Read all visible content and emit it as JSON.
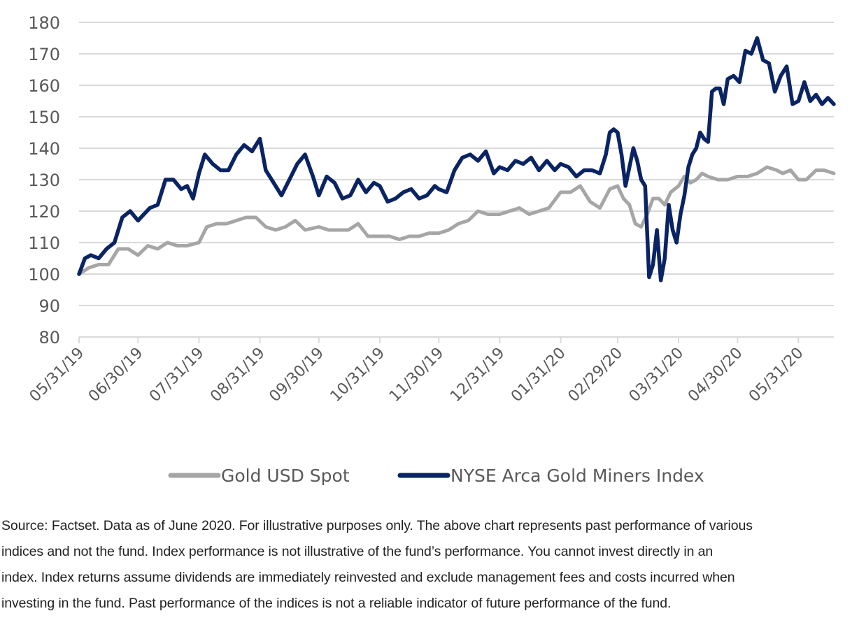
{
  "chart_data": {
    "type": "line",
    "title": "",
    "xlabel": "",
    "ylabel": "",
    "ylim": [
      80,
      180
    ],
    "yticks": [
      180,
      170,
      160,
      150,
      140,
      130,
      120,
      110,
      100,
      90,
      80
    ],
    "grid": true,
    "legend_position": "bottom",
    "x_tick_labels": [
      "05/31/19",
      "06/30/19",
      "07/31/19",
      "08/31/19",
      "09/30/19",
      "10/31/19",
      "11/30/19",
      "12/31/19",
      "01/31/20",
      "02/29/20",
      "03/31/20",
      "04/30/20",
      "05/31/20"
    ],
    "x_tick_positions": [
      0,
      30,
      61,
      92,
      122,
      153,
      183,
      214,
      245,
      274,
      305,
      335,
      366
    ],
    "x_range": [
      0,
      384
    ],
    "series": [
      {
        "name": "Gold USD Spot",
        "color": "#a6a6a6",
        "x": [
          0,
          5,
          10,
          15,
          20,
          25,
          30,
          35,
          40,
          45,
          50,
          55,
          61,
          65,
          70,
          75,
          80,
          85,
          90,
          95,
          100,
          105,
          110,
          115,
          122,
          127,
          132,
          137,
          142,
          147,
          153,
          158,
          163,
          168,
          173,
          178,
          183,
          188,
          193,
          198,
          203,
          208,
          214,
          219,
          224,
          229,
          234,
          239,
          245,
          250,
          255,
          260,
          265,
          270,
          274,
          277,
          280,
          283,
          286,
          289,
          292,
          295,
          298,
          301,
          305,
          308,
          311,
          314,
          317,
          320,
          325,
          330,
          335,
          340,
          345,
          350,
          355,
          358,
          362,
          366,
          370,
          375,
          379,
          384
        ],
        "values": [
          100,
          102,
          103,
          103,
          108,
          108,
          106,
          109,
          108,
          110,
          109,
          109,
          110,
          115,
          116,
          116,
          117,
          118,
          118,
          115,
          114,
          115,
          117,
          114,
          115,
          114,
          114,
          114,
          116,
          112,
          112,
          112,
          111,
          112,
          112,
          113,
          113,
          114,
          116,
          117,
          120,
          119,
          119,
          120,
          121,
          119,
          120,
          121,
          126,
          126,
          128,
          123,
          121,
          127,
          128,
          124,
          122,
          116,
          115,
          119,
          124,
          124,
          122,
          126,
          128,
          131,
          129,
          130,
          132,
          131,
          130,
          130,
          131,
          131,
          132,
          134,
          133,
          132,
          133,
          130,
          130,
          133,
          133,
          132
        ]
      },
      {
        "name": "NYSE Arca Gold Miners Index",
        "color": "#0a2463",
        "x": [
          0,
          3,
          6,
          10,
          14,
          18,
          22,
          26,
          30,
          33,
          36,
          40,
          44,
          48,
          52,
          55,
          58,
          61,
          64,
          68,
          72,
          76,
          80,
          84,
          88,
          92,
          95,
          99,
          103,
          107,
          111,
          115,
          119,
          122,
          126,
          130,
          134,
          138,
          142,
          146,
          150,
          153,
          157,
          161,
          165,
          169,
          173,
          177,
          181,
          183,
          187,
          191,
          195,
          199,
          203,
          207,
          211,
          214,
          218,
          222,
          226,
          230,
          234,
          238,
          242,
          245,
          249,
          253,
          257,
          261,
          265,
          268,
          270,
          272,
          274,
          276,
          278,
          280,
          282,
          284,
          286,
          288,
          290,
          292,
          294,
          296,
          298,
          300,
          302,
          304,
          306,
          308,
          310,
          312,
          314,
          316,
          318,
          320,
          322,
          324,
          326,
          328,
          330,
          333,
          336,
          339,
          342,
          345,
          348,
          351,
          354,
          357,
          360,
          363,
          366,
          369,
          372,
          375,
          378,
          381,
          384
        ],
        "values": [
          100,
          105,
          106,
          105,
          108,
          110,
          118,
          120,
          117,
          119,
          121,
          122,
          130,
          130,
          127,
          128,
          124,
          132,
          138,
          135,
          133,
          133,
          138,
          141,
          139,
          143,
          133,
          129,
          125,
          130,
          135,
          138,
          131,
          125,
          131,
          129,
          124,
          125,
          130,
          126,
          129,
          128,
          123,
          124,
          126,
          127,
          124,
          125,
          128,
          127,
          126,
          133,
          137,
          138,
          136,
          139,
          132,
          134,
          133,
          136,
          135,
          137,
          133,
          136,
          133,
          135,
          134,
          131,
          133,
          133,
          132,
          138,
          145,
          146,
          145,
          138,
          128,
          134,
          140,
          136,
          130,
          128,
          99,
          103,
          114,
          98,
          105,
          122,
          114,
          110,
          119,
          125,
          134,
          138,
          140,
          145,
          143,
          142,
          158,
          159,
          159,
          154,
          162,
          163,
          161,
          171,
          170,
          175,
          168,
          167,
          158,
          163,
          166,
          154,
          155,
          161,
          155,
          157,
          154,
          156,
          154
        ]
      }
    ]
  },
  "legend": {
    "items": [
      "Gold USD Spot",
      "NYSE Arca Gold Miners Index"
    ]
  },
  "footnote": {
    "lines": [
      "Source: Factset. Data as of June 2020. For illustrative purposes only. The above chart represents past performance of various",
      "indices and not the fund. Index performance is not illustrative of the fund’s performance. You cannot invest directly in an",
      "index. Index returns assume dividends are immediately reinvested and exclude management fees and costs incurred when",
      "investing in the fund. Past performance of the indices is not a reliable indicator of future performance of the fund."
    ]
  }
}
